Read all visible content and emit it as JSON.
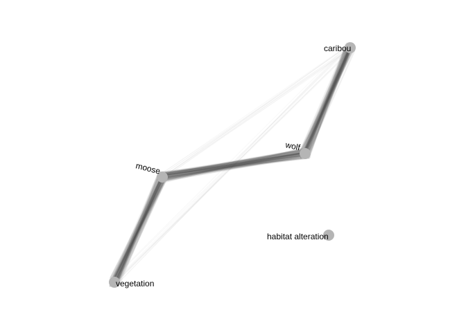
{
  "network": {
    "nodes": [
      {
        "id": "caribou",
        "label": "caribou"
      },
      {
        "id": "wolf",
        "label": "wolf"
      },
      {
        "id": "moose",
        "label": "moose"
      },
      {
        "id": "vegetation",
        "label": "vegetation"
      },
      {
        "id": "habitat_alteration",
        "label": "habitat alteration"
      }
    ],
    "edges": [
      {
        "from": "caribou",
        "to": "wolf",
        "weight": "strong"
      },
      {
        "from": "wolf",
        "to": "moose",
        "weight": "strong"
      },
      {
        "from": "moose",
        "to": "vegetation",
        "weight": "strong"
      },
      {
        "from": "caribou",
        "to": "moose",
        "weight": "faint"
      },
      {
        "from": "caribou",
        "to": "vegetation",
        "weight": "faint"
      }
    ]
  },
  "colors": {
    "node": "#b5b5b5",
    "edge": "#555555",
    "label": "#000000",
    "background": "#ffffff"
  }
}
